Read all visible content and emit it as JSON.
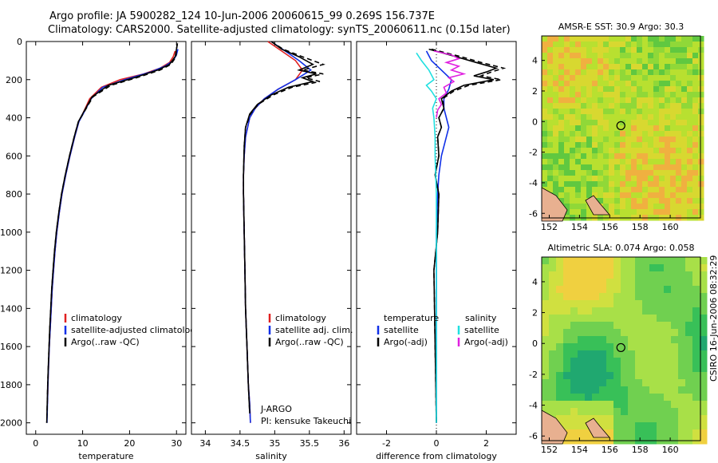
{
  "figure": {
    "title_line1": "Argo profile: JA 5900282_124 10-Jun-2006 20060615_99 0.269S 156.737E",
    "title_line2": "Climatology: CARS2000. Satellite-adjusted climatology: synTS_20060611.nc (0.15d later)",
    "credit": "CSIRO 16-Jun-2006 08:32:29"
  },
  "colors": {
    "climatology": "#e02020",
    "satellite": "#1030e8",
    "argo": "#000000",
    "sal_satellite": "#20e0e0",
    "sal_argo": "#e020e0"
  },
  "chart_data": [
    {
      "id": "temperature",
      "type": "line",
      "xlabel": "temperature",
      "ylabel": "",
      "xlim": [
        -2,
        32
      ],
      "ylim": [
        2060,
        0
      ],
      "xticks": [
        0,
        10,
        20,
        30
      ],
      "yticks": [
        0,
        200,
        400,
        600,
        800,
        1000,
        1200,
        1400,
        1600,
        1800,
        2000
      ],
      "legend": [
        "climatology",
        "satellite-adjusted climatolog",
        "Argo(..raw -QC)"
      ],
      "series": [
        {
          "name": "climatology",
          "color": "#e02020",
          "dash": "",
          "x": [
            29.7,
            29.3,
            28.5,
            26.5,
            23,
            18,
            14,
            11.5,
            10,
            9.2,
            8.3,
            7.3,
            6.4,
            5.6,
            5,
            4.5,
            4.1,
            3.8,
            3.5,
            3.3,
            3.1,
            2.9,
            2.75,
            2.6,
            2.5
          ],
          "y": [
            50,
            80,
            110,
            140,
            170,
            200,
            240,
            300,
            380,
            420,
            500,
            600,
            700,
            800,
            900,
            1000,
            1100,
            1200,
            1300,
            1400,
            1500,
            1600,
            1700,
            1800,
            1900
          ]
        },
        {
          "name": "satellite-adjusted climatology",
          "color": "#1030e8",
          "dash": "",
          "x": [
            30.3,
            30,
            29.3,
            27.5,
            24.5,
            19,
            14.3,
            11.8,
            10.1,
            9.2,
            8.3,
            7.3,
            6.4,
            5.6,
            5,
            4.5,
            4.1,
            3.8,
            3.5,
            3.3,
            3.1,
            2.9,
            2.75,
            2.6,
            2.5,
            2.4
          ],
          "y": [
            40,
            70,
            100,
            130,
            160,
            200,
            240,
            300,
            380,
            420,
            500,
            600,
            700,
            800,
            900,
            1000,
            1100,
            1200,
            1300,
            1400,
            1500,
            1600,
            1700,
            1800,
            1900,
            2000
          ]
        },
        {
          "name": "Argo(..raw -QC)",
          "color": "#000000",
          "dash": "",
          "x": [
            30.2,
            30,
            29.7,
            28.5,
            26,
            21,
            15.5,
            12,
            10.2,
            9.1,
            8.2,
            7.2,
            6.3,
            5.5,
            4.9,
            4.4,
            4,
            3.7,
            3.4,
            3.2,
            3,
            2.85,
            2.7,
            2.55,
            2.45,
            2.35
          ],
          "y": [
            10,
            40,
            80,
            120,
            150,
            190,
            230,
            290,
            370,
            420,
            500,
            600,
            700,
            800,
            900,
            1000,
            1100,
            1200,
            1300,
            1400,
            1500,
            1600,
            1700,
            1800,
            1900,
            2000
          ]
        },
        {
          "name": "Argo adj",
          "color": "#000000",
          "dash": "6,4",
          "x": [
            30.2,
            30,
            29.9,
            28.8,
            26.5,
            21.5,
            16,
            12.2,
            10.3,
            9.1,
            8.2,
            7.2,
            6.3,
            5.5,
            4.9,
            4.4,
            4,
            3.7,
            3.4,
            3.2,
            3,
            2.85,
            2.7,
            2.55,
            2.45,
            2.35
          ],
          "y": [
            10,
            40,
            80,
            120,
            150,
            190,
            230,
            290,
            370,
            420,
            500,
            600,
            700,
            800,
            900,
            1000,
            1100,
            1200,
            1300,
            1400,
            1500,
            1600,
            1700,
            1800,
            1900,
            2000
          ]
        }
      ]
    },
    {
      "id": "salinity",
      "type": "line",
      "xlabel": "salinity",
      "ylabel": "",
      "xlim": [
        33.8,
        36.1
      ],
      "ylim": [
        2060,
        0
      ],
      "xticks": [
        34,
        34.5,
        35,
        35.5,
        36
      ],
      "yticks": [
        0,
        200,
        400,
        600,
        800,
        1000,
        1200,
        1400,
        1600,
        1800,
        2000
      ],
      "legend": [
        "climatology",
        "satellite adj. clim.",
        "Argo(..raw -QC)"
      ],
      "annotation": [
        "J-ARGO",
        "PI: kensuke Takeuchi"
      ],
      "series": [
        {
          "name": "climatology",
          "color": "#e02020",
          "dash": "",
          "x": [
            34.9,
            35.1,
            35.3,
            35.4,
            35.3,
            35.05,
            34.85,
            34.72,
            34.64,
            34.58,
            34.56,
            34.55,
            34.55,
            34.56,
            34.57,
            34.58,
            34.6,
            34.62,
            34.64,
            34.65
          ],
          "y": [
            0,
            50,
            100,
            150,
            200,
            250,
            300,
            350,
            400,
            500,
            600,
            700,
            800,
            1000,
            1200,
            1400,
            1600,
            1800,
            1900,
            2000
          ]
        },
        {
          "name": "satellite adj. clim.",
          "color": "#1030e8",
          "dash": "",
          "x": [
            34.95,
            35.15,
            35.35,
            35.52,
            35.3,
            35.05,
            34.85,
            34.72,
            34.64,
            34.58,
            34.56,
            34.55,
            34.55,
            34.56,
            34.57,
            34.58,
            34.6,
            34.62,
            34.64,
            34.65
          ],
          "y": [
            0,
            50,
            100,
            150,
            200,
            250,
            300,
            350,
            400,
            500,
            600,
            700,
            800,
            1000,
            1200,
            1400,
            1600,
            1800,
            1900,
            2000
          ]
        },
        {
          "name": "Argo(..raw -QC)",
          "color": "#000000",
          "dash": "",
          "x": [
            34.95,
            35.1,
            35.35,
            35.55,
            35.35,
            35.6,
            35.4,
            35.55,
            35.2,
            34.95,
            34.75,
            34.64,
            34.58,
            34.56,
            34.55,
            34.55,
            34.56,
            34.57,
            34.58,
            34.6,
            34.62,
            34.64
          ],
          "y": [
            0,
            40,
            80,
            120,
            150,
            170,
            190,
            210,
            240,
            280,
            330,
            380,
            450,
            550,
            700,
            800,
            1000,
            1200,
            1400,
            1600,
            1800,
            1950
          ]
        },
        {
          "name": "Argo adj",
          "color": "#000000",
          "dash": "6,4",
          "x": [
            34.95,
            35.12,
            35.4,
            35.7,
            35.4,
            35.7,
            35.45,
            35.65,
            35.25,
            34.98,
            34.76,
            34.65,
            34.58,
            34.56,
            34.55,
            34.55,
            34.56,
            34.57,
            34.58,
            34.6,
            34.62,
            34.64
          ],
          "y": [
            0,
            40,
            80,
            120,
            150,
            170,
            190,
            210,
            240,
            280,
            330,
            380,
            450,
            550,
            700,
            800,
            1000,
            1200,
            1400,
            1600,
            1800,
            1950
          ]
        }
      ]
    },
    {
      "id": "difference",
      "type": "line",
      "xlabel": "difference from climatology",
      "ylabel": "",
      "xlim": [
        -3.2,
        3.2
      ],
      "ylim": [
        2060,
        0
      ],
      "xticks": [
        -2,
        0,
        2
      ],
      "yticks": [
        0,
        200,
        400,
        600,
        800,
        1000,
        1200,
        1400,
        1600,
        1800,
        2000
      ],
      "legend_temperature": [
        "temperature",
        "satellite",
        "Argo(-adj)"
      ],
      "legend_salinity": [
        "salinity",
        "satellite",
        "Argo(-adj)"
      ],
      "series": [
        {
          "name": "temperature satellite",
          "color": "#1030e8",
          "dash": "",
          "x": [
            -0.4,
            -0.2,
            0.2,
            0.6,
            0.5,
            0.3,
            0.3,
            0.4,
            0.5,
            0.4,
            0.3,
            0.2,
            0.1,
            0.05,
            0,
            0,
            0,
            0,
            0
          ],
          "y": [
            50,
            100,
            150,
            200,
            250,
            300,
            350,
            400,
            450,
            500,
            550,
            600,
            700,
            800,
            1000,
            1200,
            1400,
            1600,
            2000
          ]
        },
        {
          "name": "temperature Argo(-adj)",
          "color": "#000000",
          "dash": "",
          "x": [
            -0.3,
            0.8,
            1.6,
            2.4,
            2,
            1.5,
            2.3,
            1.1,
            0.6,
            0.2,
            0.3,
            0.1,
            0.2,
            0.05,
            0.1,
            -0.05,
            0.1,
            0.05,
            -0.1,
            0
          ],
          "y": [
            40,
            80,
            110,
            140,
            160,
            180,
            200,
            230,
            260,
            300,
            350,
            400,
            450,
            500,
            600,
            700,
            800,
            1000,
            1200,
            2000
          ]
        },
        {
          "name": "temperature Argo adj dashed",
          "color": "#000000",
          "dash": "6,4",
          "x": [
            -0.2,
            1,
            1.8,
            2.7,
            2.2,
            1.8,
            2.6,
            1.3,
            0.7,
            0.25,
            0.3,
            0.1,
            0.2,
            0.05,
            0.1,
            -0.05,
            0.1,
            0.05,
            -0.1,
            0
          ],
          "y": [
            40,
            80,
            110,
            140,
            160,
            180,
            200,
            230,
            260,
            300,
            350,
            400,
            450,
            500,
            600,
            700,
            800,
            1000,
            1200,
            2000
          ]
        },
        {
          "name": "salinity satellite",
          "color": "#20e0e0",
          "dash": "",
          "x": [
            -0.8,
            -0.6,
            -0.3,
            -0.1,
            -0.4,
            -0.2,
            0,
            -0.15,
            -0.1,
            -0.05,
            -0.05,
            0,
            0,
            0,
            0
          ],
          "y": [
            60,
            100,
            150,
            200,
            230,
            260,
            300,
            350,
            400,
            500,
            600,
            800,
            1000,
            1500,
            2000
          ]
        },
        {
          "name": "salinity Argo(-adj)",
          "color": "#e020e0",
          "dash": "",
          "x": [
            -0.1,
            0.6,
            0.9,
            0.4,
            0.9,
            0.6,
            1.1,
            0.5,
            0.7,
            0.3,
            0.4,
            0.1,
            0.2,
            0.05,
            0
          ],
          "y": [
            50,
            70,
            90,
            110,
            130,
            150,
            170,
            190,
            210,
            240,
            270,
            300,
            330,
            360,
            400
          ]
        }
      ]
    },
    {
      "id": "sst-map",
      "type": "heatmap",
      "title": "AMSR-E SST: 30.9 Argo: 30.3",
      "xlim": [
        151.5,
        162
      ],
      "ylim": [
        -6.3,
        5.6
      ],
      "xticks": [
        152,
        154,
        156,
        158,
        160
      ],
      "yticks": [
        -6,
        -4,
        -2,
        0,
        2,
        4
      ],
      "marker": {
        "lon": 156.737,
        "lat": -0.269
      }
    },
    {
      "id": "sla-map",
      "type": "heatmap",
      "title": "Altimetric SLA: 0.074 Argo: 0.058",
      "xlim": [
        151.5,
        162
      ],
      "ylim": [
        -6.3,
        5.6
      ],
      "xticks": [
        152,
        154,
        156,
        158,
        160
      ],
      "yticks": [
        -6,
        -4,
        -2,
        0,
        2,
        4
      ],
      "marker": {
        "lon": 156.737,
        "lat": -0.269
      }
    }
  ]
}
